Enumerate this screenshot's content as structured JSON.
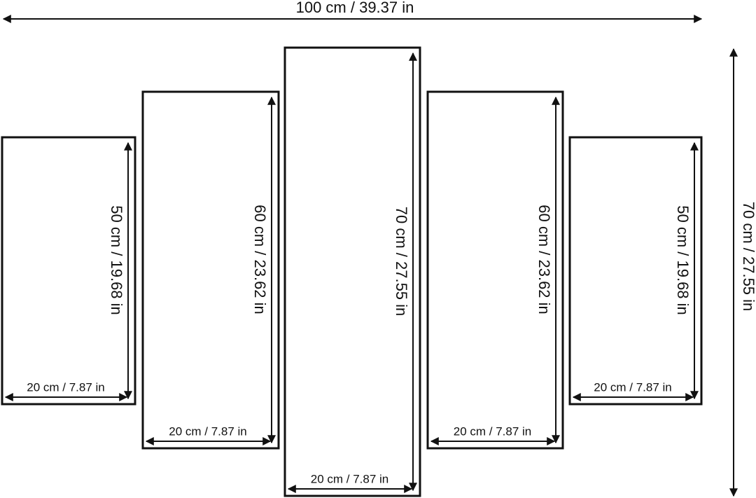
{
  "total_width": "100 cm / 39.37 in",
  "total_height": "70 cm / 27.55 in",
  "panels": [
    {
      "height": "50 cm / 19.68 in",
      "width": "20 cm / 7.87 in"
    },
    {
      "height": "60 cm / 23.62 in",
      "width": "20 cm / 7.87 in"
    },
    {
      "height": "70 cm / 27.55 in",
      "width": "20 cm / 7.87 in"
    },
    {
      "height": "60 cm / 23.62 in",
      "width": "20 cm / 7.87 in"
    },
    {
      "height": "50 cm / 19.68 in",
      "width": "20 cm / 7.87 in"
    }
  ]
}
